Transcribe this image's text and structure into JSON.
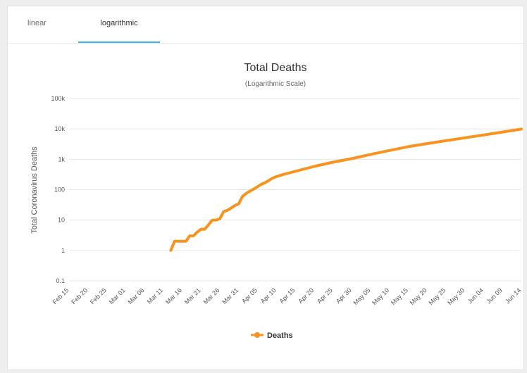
{
  "tabs": [
    {
      "label": "linear",
      "active": false
    },
    {
      "label": "logarithmic",
      "active": true
    }
  ],
  "colors": {
    "series": "#f7931e",
    "tab_accent": "#35b3e6",
    "grid": "#e6e6e6"
  },
  "chart_data": {
    "type": "line",
    "title": "Total Deaths",
    "subtitle": "(Logarithmic Scale)",
    "ylabel": "Total Coronavirus Deaths",
    "xlabel": "",
    "yscale": "log",
    "ylim": [
      0.1,
      100000
    ],
    "y_ticks": [
      0.1,
      1,
      10,
      100,
      1000,
      10000,
      100000
    ],
    "y_tick_labels": [
      "0.1",
      "1",
      "10",
      "100",
      "1k",
      "10k",
      "100k"
    ],
    "x_range": [
      "Feb 15",
      "Jun 14"
    ],
    "x_tick_labels": [
      "Feb 15",
      "Feb 20",
      "Feb 25",
      "Mar 01",
      "Mar 06",
      "Mar 11",
      "Mar 16",
      "Mar 21",
      "Mar 26",
      "Mar 31",
      "Apr 05",
      "Apr 10",
      "Apr 15",
      "Apr 20",
      "Apr 25",
      "Apr 30",
      "May 05",
      "May 10",
      "May 15",
      "May 20",
      "May 25",
      "May 30",
      "Jun 04",
      "Jun 09",
      "Jun 14"
    ],
    "grid": true,
    "legend": "bottom-center",
    "series": [
      {
        "name": "Deaths",
        "x": [
          "Mar 13",
          "Mar 14",
          "Mar 15",
          "Mar 16",
          "Mar 17",
          "Mar 18",
          "Mar 19",
          "Mar 20",
          "Mar 21",
          "Mar 22",
          "Mar 23",
          "Mar 24",
          "Mar 25",
          "Mar 26",
          "Mar 27",
          "Mar 28",
          "Mar 29",
          "Mar 30",
          "Mar 31",
          "Apr 01",
          "Apr 02",
          "Apr 03",
          "Apr 04",
          "Apr 05",
          "Apr 06",
          "Apr 07",
          "Apr 08",
          "Apr 09",
          "Apr 10",
          "Apr 12",
          "Apr 15",
          "Apr 20",
          "Apr 25",
          "Apr 30",
          "May 05",
          "May 10",
          "May 15",
          "May 20",
          "May 25",
          "May 30",
          "Jun 04",
          "Jun 09",
          "Jun 14"
        ],
        "values": [
          1,
          2,
          2,
          2,
          2,
          3,
          3,
          4,
          5,
          5,
          7,
          10,
          10,
          11,
          19,
          21,
          25,
          30,
          34,
          60,
          75,
          90,
          105,
          125,
          150,
          170,
          200,
          240,
          270,
          320,
          400,
          580,
          800,
          1050,
          1450,
          1950,
          2600,
          3300,
          4100,
          5100,
          6300,
          7900,
          9900
        ]
      }
    ]
  }
}
